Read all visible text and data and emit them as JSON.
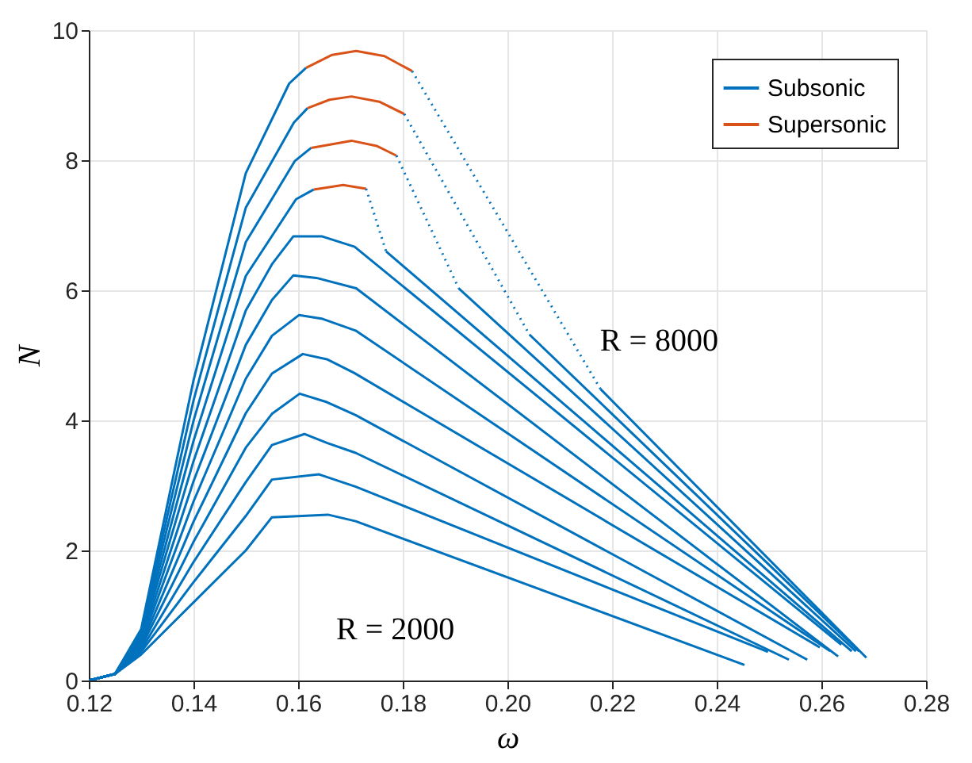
{
  "chart_data": {
    "type": "line",
    "xlabel": "ω",
    "ylabel": "N",
    "xlim": [
      0.12,
      0.28
    ],
    "xticks": [
      0.12,
      0.14,
      0.16,
      0.18,
      {
        "value": 0.2,
        "label": "0.20"
      },
      0.22,
      0.24,
      0.26,
      0.28
    ],
    "line_style": "solid",
    "ylim": [
      0,
      10
    ],
    "yticks": [
      0,
      2,
      4,
      6,
      8,
      10
    ],
    "grid": true,
    "legend": "top right",
    "annotations": [
      "R = 8000",
      "R = 2000"
    ],
    "series": [
      {
        "name": "Subsonic",
        "color": "#0072bd",
        "x": [
          0.12,
          0.125,
          0.13,
          0.14,
          0.15,
          0.155,
          0.1657,
          0.171,
          0.2453
        ],
        "values": [
          0,
          0.1,
          0.4,
          1.2,
          2.0,
          2.51,
          2.55,
          2.45,
          0.24
        ]
      },
      {
        "color": "#0072bd",
        "x": [
          0.12,
          0.125,
          0.13,
          0.14,
          0.15,
          0.155,
          0.164,
          0.171,
          0.2498
        ],
        "values": [
          0,
          0.1,
          0.44,
          1.51,
          2.53,
          3.09,
          3.17,
          2.98,
          0.44
        ]
      },
      {
        "color": "#0072bd",
        "x": [
          0.12,
          0.125,
          0.13,
          0.14,
          0.15,
          0.155,
          0.1612,
          0.1656,
          0.171,
          0.2538
        ],
        "values": [
          0,
          0.1,
          0.47,
          1.82,
          3.05,
          3.62,
          3.79,
          3.65,
          3.5,
          0.32
        ]
      },
      {
        "color": "#0072bd",
        "x": [
          0.12,
          0.125,
          0.13,
          0.14,
          0.15,
          0.155,
          0.1603,
          0.1655,
          0.171,
          0.2573
        ],
        "values": [
          0,
          0.1,
          0.51,
          2.13,
          3.58,
          4.1,
          4.41,
          4.28,
          4.08,
          0.32
        ]
      },
      {
        "color": "#0072bd",
        "x": [
          0.12,
          0.125,
          0.13,
          0.14,
          0.15,
          0.155,
          0.1609,
          0.1655,
          0.1707,
          0.2597
        ],
        "values": [
          0,
          0.1,
          0.54,
          2.44,
          4.11,
          4.72,
          5.02,
          4.94,
          4.73,
          0.51
        ]
      },
      {
        "color": "#0072bd",
        "x": [
          0.12,
          0.125,
          0.13,
          0.14,
          0.15,
          0.155,
          0.1602,
          0.1647,
          0.171,
          0.2617
        ],
        "values": [
          0,
          0.1,
          0.58,
          2.75,
          4.64,
          5.3,
          5.62,
          5.56,
          5.38,
          0.45
        ]
      },
      {
        "color": "#0072bd",
        "x": [
          0.12,
          0.125,
          0.13,
          0.14,
          0.15,
          0.155,
          0.1591,
          0.1635,
          0.1711,
          0.2632
        ],
        "values": [
          0,
          0.1,
          0.61,
          3.06,
          5.16,
          5.85,
          6.23,
          6.19,
          6.03,
          0.37
        ]
      },
      {
        "color": "#0072bd",
        "x": [
          0.12,
          0.125,
          0.13,
          0.14,
          0.15,
          0.155,
          0.1591,
          0.1645,
          0.1708,
          0.2638
        ],
        "values": [
          0,
          0.1,
          0.65,
          3.37,
          5.69,
          6.4,
          6.83,
          6.83,
          6.67,
          0.55
        ]
      },
      {
        "color": "#0072bd",
        "x": [
          0.12,
          0.125,
          0.13,
          0.14,
          0.15,
          0.1596,
          0.163,
          0.17,
          0.1768,
          0.2658
        ],
        "values": [
          0,
          0.1,
          0.68,
          3.68,
          6.22,
          7.4,
          7.55,
          null,
          6.6,
          0.45
        ]
      },
      {
        "color": "#0072bd",
        "line_style": "dotted",
        "x": [
          0.173,
          0.1768
        ],
        "values": [
          7.56,
          6.6
        ]
      },
      {
        "color": "#0072bd",
        "x": [
          0.12,
          0.125,
          0.13,
          0.14,
          0.15,
          0.1594,
          0.1625,
          0.18,
          0.1907,
          0.2666
        ],
        "values": [
          0,
          0.1,
          0.72,
          3.99,
          6.74,
          7.99,
          8.19,
          null,
          6.03,
          0.45
        ]
      },
      {
        "color": "#0072bd",
        "line_style": "dotted",
        "x": [
          0.1788,
          0.1907
        ],
        "values": [
          8.07,
          6.03
        ]
      },
      {
        "color": "#0072bd",
        "x": [
          0.12,
          0.125,
          0.13,
          0.14,
          0.15,
          0.1592,
          0.1618,
          0.19,
          0.2042,
          0.2672
        ],
        "values": [
          0,
          0.1,
          0.75,
          4.3,
          7.27,
          8.58,
          8.8,
          null,
          5.32,
          0.45
        ]
      },
      {
        "color": "#0072bd",
        "line_style": "dotted",
        "x": [
          0.1803,
          0.2042
        ],
        "values": [
          8.71,
          5.32
        ]
      },
      {
        "color": "#0072bd",
        "x": [
          0.12,
          0.125,
          0.13,
          0.14,
          0.15,
          0.1583,
          0.1615,
          0.2,
          0.2178,
          0.2686
        ],
        "values": [
          0,
          0.1,
          0.79,
          4.61,
          7.8,
          9.18,
          9.42,
          null,
          4.48,
          0.35
        ]
      },
      {
        "color": "#0072bd",
        "line_style": "dotted",
        "x": [
          0.1818,
          0.2178
        ],
        "values": [
          9.37,
          4.48
        ]
      },
      {
        "name": "Supersonic",
        "color": "#d95319",
        "x": [
          0.163,
          0.1686,
          0.173
        ],
        "values": [
          7.55,
          7.62,
          7.56
        ]
      },
      {
        "color": "#d95319",
        "x": [
          0.1625,
          0.1702,
          0.175,
          0.1788
        ],
        "values": [
          8.19,
          8.3,
          8.22,
          8.07
        ]
      },
      {
        "color": "#d95319",
        "x": [
          0.1618,
          0.166,
          0.1702,
          0.1755,
          0.1803
        ],
        "values": [
          8.8,
          8.93,
          8.98,
          8.9,
          8.71
        ]
      },
      {
        "color": "#d95319",
        "x": [
          0.1615,
          0.1665,
          0.1711,
          0.1765,
          0.1818
        ],
        "values": [
          9.42,
          9.62,
          9.68,
          9.6,
          9.37
        ]
      }
    ]
  }
}
